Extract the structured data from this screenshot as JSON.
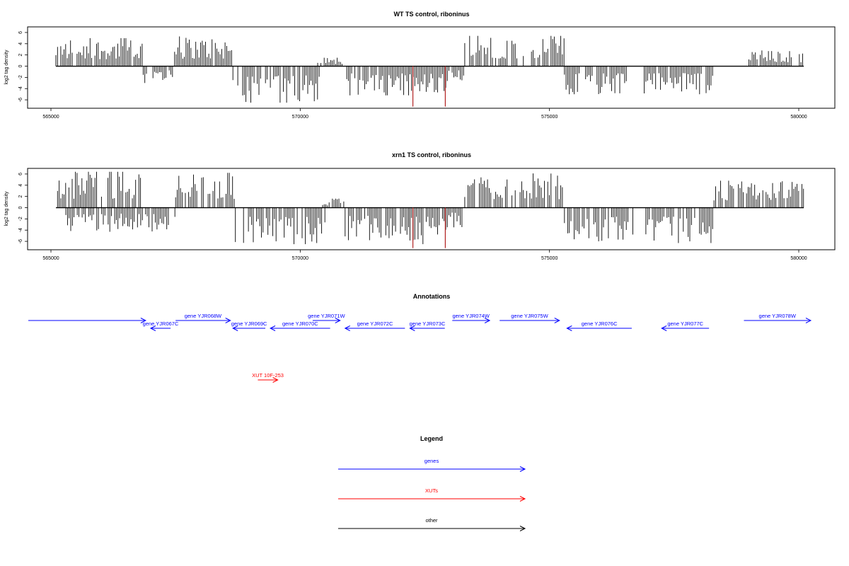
{
  "colors": {
    "gene": "#0000ff",
    "xut": "#ff0000",
    "other": "#000000",
    "highlight": "#b22222",
    "bar": "#000000"
  },
  "chart_data": [
    {
      "type": "bar",
      "title": "WT TS control, riboninus",
      "ylabel": "log2 tag density",
      "xlim": [
        565000,
        580100
      ],
      "ylim": [
        -7.5,
        7
      ],
      "xticks": [
        565000,
        570000,
        575000,
        580000
      ],
      "yticks": [
        6,
        4,
        2,
        0,
        -2,
        -4,
        -6
      ],
      "x_range": [
        565100,
        580100
      ],
      "segments": [
        {
          "from": 565100,
          "to": 566850,
          "sign": 1,
          "peak": 5.0
        },
        {
          "from": 566850,
          "to": 567450,
          "sign": -1,
          "peak": 3.0
        },
        {
          "from": 567480,
          "to": 568650,
          "sign": 1,
          "peak": 5.3
        },
        {
          "from": 568650,
          "to": 570400,
          "sign": -1,
          "peak": 6.5
        },
        {
          "from": 570350,
          "to": 570900,
          "sign": 1,
          "peak": 1.5
        },
        {
          "from": 570900,
          "to": 572200,
          "sign": -1,
          "peak": 5.2
        },
        {
          "from": 572200,
          "to": 572950,
          "sign": -1,
          "peak": 5.0
        },
        {
          "from": 572950,
          "to": 573300,
          "sign": -1,
          "peak": 3.0
        },
        {
          "from": 573300,
          "to": 575300,
          "sign": 1,
          "peak": 5.4
        },
        {
          "from": 575300,
          "to": 576600,
          "sign": -1,
          "peak": 5.0
        },
        {
          "from": 576900,
          "to": 578300,
          "sign": -1,
          "peak": 5.0
        },
        {
          "from": 579000,
          "to": 580100,
          "sign": 1,
          "peak": 2.8
        }
      ],
      "highlights": [
        {
          "x": 572260,
          "value": -7.2
        },
        {
          "x": 572910,
          "value": -7.2
        }
      ]
    },
    {
      "type": "bar",
      "title": "xrn1 TS control, riboninus",
      "ylabel": "log2 tag density",
      "xlim": [
        565000,
        580100
      ],
      "ylim": [
        -7.5,
        7
      ],
      "xticks": [
        565000,
        570000,
        575000,
        580000
      ],
      "yticks": [
        6,
        4,
        2,
        0,
        -2,
        -4,
        -6
      ],
      "x_range": [
        565100,
        580100
      ],
      "segments": [
        {
          "from": 565100,
          "to": 566800,
          "sign": 1,
          "peak": 6.4
        },
        {
          "from": 565300,
          "to": 567500,
          "sign": -1,
          "peak": 4.3
        },
        {
          "from": 567500,
          "to": 568700,
          "sign": 1,
          "peak": 6.2
        },
        {
          "from": 568700,
          "to": 570500,
          "sign": -1,
          "peak": 6.5
        },
        {
          "from": 570450,
          "to": 570900,
          "sign": 1,
          "peak": 1.6
        },
        {
          "from": 570900,
          "to": 572200,
          "sign": -1,
          "peak": 5.8
        },
        {
          "from": 572200,
          "to": 572950,
          "sign": -1,
          "peak": 6.5
        },
        {
          "from": 572950,
          "to": 573300,
          "sign": -1,
          "peak": 3.5
        },
        {
          "from": 573300,
          "to": 575300,
          "sign": 1,
          "peak": 6.1
        },
        {
          "from": 575300,
          "to": 576700,
          "sign": -1,
          "peak": 6.0
        },
        {
          "from": 576900,
          "to": 578300,
          "sign": -1,
          "peak": 6.3
        },
        {
          "from": 578300,
          "to": 580100,
          "sign": 1,
          "peak": 4.8
        }
      ],
      "highlights": [
        {
          "x": 572260,
          "value": -7.2
        },
        {
          "x": 572910,
          "value": -7.2
        }
      ]
    }
  ],
  "annotations": {
    "title": "Annotations",
    "features": [
      {
        "label": "",
        "start": 564500,
        "end": 566900,
        "strand": "+",
        "kind": "gene",
        "row": 0
      },
      {
        "label": "gene YJR067C",
        "start": 567000,
        "end": 567400,
        "strand": "-",
        "kind": "gene",
        "row": 1
      },
      {
        "label": "gene YJR068W",
        "start": 567500,
        "end": 568600,
        "strand": "+",
        "kind": "gene",
        "row": 0
      },
      {
        "label": "gene YJR069C",
        "start": 568650,
        "end": 569300,
        "strand": "-",
        "kind": "gene",
        "row": 1
      },
      {
        "label": "gene YJR070C",
        "start": 569400,
        "end": 570600,
        "strand": "-",
        "kind": "gene",
        "row": 1
      },
      {
        "label": "gene YJR071W",
        "start": 570250,
        "end": 570800,
        "strand": "+",
        "kind": "gene",
        "row": 0
      },
      {
        "label": "gene YJR072C",
        "start": 570900,
        "end": 572100,
        "strand": "-",
        "kind": "gene",
        "row": 1
      },
      {
        "label": "gene YJR073C",
        "start": 572200,
        "end": 572900,
        "strand": "-",
        "kind": "gene",
        "row": 1
      },
      {
        "label": "gene YJR074W",
        "start": 573050,
        "end": 573800,
        "strand": "+",
        "kind": "gene",
        "row": 0
      },
      {
        "label": "gene YJR075W",
        "start": 574000,
        "end": 575200,
        "strand": "+",
        "kind": "gene",
        "row": 0
      },
      {
        "label": "gene YJR076C",
        "start": 575350,
        "end": 576650,
        "strand": "-",
        "kind": "gene",
        "row": 1
      },
      {
        "label": "gene YJR077C",
        "start": 577250,
        "end": 578200,
        "strand": "-",
        "kind": "gene",
        "row": 1
      },
      {
        "label": "gene YJR078W",
        "start": 578900,
        "end": 580300,
        "strand": "+",
        "kind": "gene",
        "row": 0
      },
      {
        "label": "XUT 10F-253",
        "start": 569150,
        "end": 569550,
        "strand": "+",
        "kind": "xut",
        "row": 2
      }
    ]
  },
  "legend": {
    "title": "Legend",
    "items": [
      {
        "label": "genes",
        "kind": "gene"
      },
      {
        "label": "XUTs",
        "kind": "xut"
      },
      {
        "label": "other",
        "kind": "other"
      }
    ]
  }
}
